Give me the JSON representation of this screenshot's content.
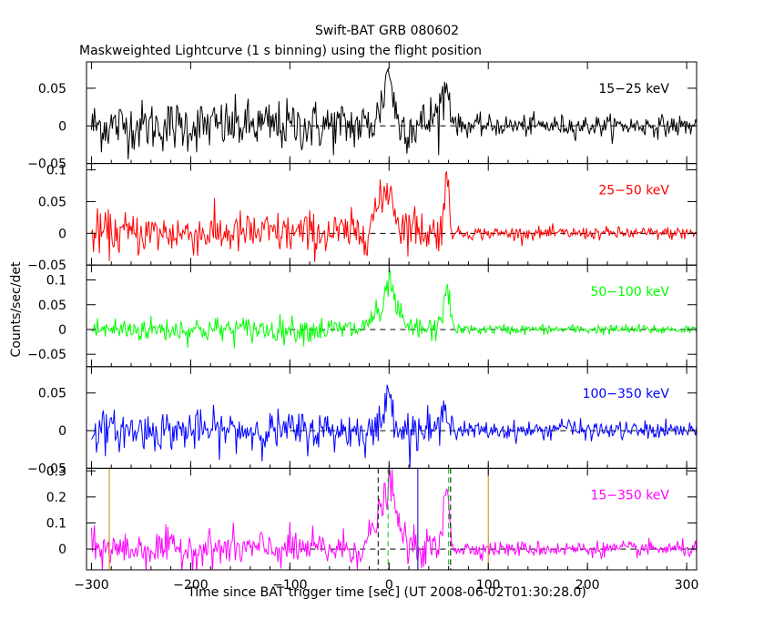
{
  "figure": {
    "title": "Swift-BAT GRB 080602",
    "subtitle": "Maskweighted Lightcurve (1 s binning) using the flight position",
    "xlabel": "Time since BAT trigger time [sec] (UT 2008-06-02T01:30:28.0)",
    "ylabel": "Counts/sec/det"
  },
  "chart_data": {
    "type": "line",
    "title": "Swift-BAT GRB 080602",
    "subtitle": "Maskweighted Lightcurve (1 s binning) using the flight position",
    "xlabel": "Time since BAT trigger time [sec] (UT 2008-06-02T01:30:28.0)",
    "ylabel": "Counts/sec/det",
    "xlim": [
      -305,
      310
    ],
    "x_ticks": [
      -300,
      -200,
      -100,
      0,
      100,
      200,
      300
    ],
    "x_tick_labels": [
      "−300",
      "−200",
      "−100",
      "0",
      "100",
      "200",
      "300"
    ],
    "binning_sec": 1,
    "panels": [
      {
        "name": "15−25 keV",
        "color": "#000000",
        "ylim": [
          -0.05,
          0.085
        ],
        "y_ticks": [
          -0.05,
          0,
          0.05
        ],
        "y_tick_labels": [
          "−0.05",
          "0",
          "0.05"
        ],
        "noise_pre": 0.017,
        "noise_post": 0.007,
        "features": [
          {
            "t": 0,
            "amp": 0.06,
            "width": 4
          },
          {
            "t": -6,
            "amp": 0.02,
            "width": 6
          },
          {
            "t": 58,
            "amp": 0.04,
            "width": 4
          },
          {
            "t": 50,
            "amp": 0.015,
            "width": 8
          }
        ]
      },
      {
        "name": "25−50 keV",
        "color": "#ff0000",
        "ylim": [
          -0.05,
          0.11
        ],
        "y_ticks": [
          -0.05,
          0,
          0.05,
          0.1
        ],
        "y_tick_labels": [
          "−0.05",
          "0",
          "0.05",
          "0.1"
        ],
        "noise_pre": 0.017,
        "noise_post": 0.005,
        "features": [
          {
            "t": 0,
            "amp": 0.065,
            "width": 5
          },
          {
            "t": -12,
            "amp": 0.035,
            "width": 6
          },
          {
            "t": 58,
            "amp": 0.075,
            "width": 3
          },
          {
            "t": 20,
            "amp": 0.012,
            "width": 10
          }
        ]
      },
      {
        "name": "50−100 keV",
        "color": "#00ff00",
        "ylim": [
          -0.075,
          0.13
        ],
        "y_ticks": [
          -0.05,
          0,
          0.05,
          0.1
        ],
        "y_tick_labels": [
          "−0.05",
          "0",
          "0.05",
          "0.1"
        ],
        "noise_pre": 0.013,
        "noise_post": 0.005,
        "features": [
          {
            "t": 0,
            "amp": 0.085,
            "width": 4
          },
          {
            "t": -14,
            "amp": 0.03,
            "width": 6
          },
          {
            "t": 58,
            "amp": 0.09,
            "width": 3
          },
          {
            "t": 8,
            "amp": 0.03,
            "width": 5
          }
        ]
      },
      {
        "name": "100−350 keV",
        "color": "#0000ff",
        "ylim": [
          -0.05,
          0.085
        ],
        "y_ticks": [
          -0.05,
          0,
          0.05
        ],
        "y_tick_labels": [
          "−0.05",
          "0",
          "0.05"
        ],
        "noise_pre": 0.013,
        "noise_post": 0.006,
        "features": [
          {
            "t": 0,
            "amp": 0.045,
            "width": 5
          },
          {
            "t": 58,
            "amp": 0.04,
            "width": 3
          },
          {
            "t": 175,
            "amp": 0.008,
            "width": 6
          }
        ]
      },
      {
        "name": "15−350 keV",
        "color": "#ff00ff",
        "ylim": [
          -0.08,
          0.31
        ],
        "y_ticks": [
          0,
          0.1,
          0.2,
          0.3
        ],
        "y_tick_labels": [
          "0",
          "0.1",
          "0.2",
          "0.3"
        ],
        "noise_pre": 0.035,
        "noise_post": 0.015,
        "features": [
          {
            "t": 0,
            "amp": 0.22,
            "width": 5
          },
          {
            "t": -12,
            "amp": 0.1,
            "width": 6
          },
          {
            "t": 58,
            "amp": 0.23,
            "width": 3
          },
          {
            "t": 10,
            "amp": 0.06,
            "width": 6
          }
        ],
        "markers": [
          {
            "t": -282,
            "color": "#cc8800",
            "dash": "none"
          },
          {
            "t": 100,
            "color": "#cc8800",
            "dash": "none"
          },
          {
            "t": -11,
            "color": "#000000",
            "dash": "6,4"
          },
          {
            "t": 62,
            "color": "#000000",
            "dash": "6,4"
          },
          {
            "t": -1,
            "color": "#00cc00",
            "dash": "6,4"
          },
          {
            "t": 60,
            "color": "#00cc00",
            "dash": "6,4"
          },
          {
            "t": 29,
            "color": "#0000aa",
            "dash": "none"
          }
        ]
      }
    ]
  }
}
